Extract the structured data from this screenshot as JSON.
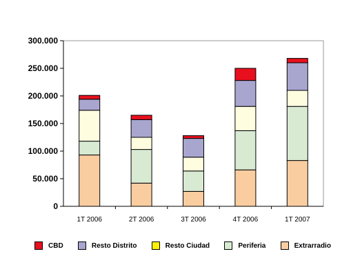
{
  "chart_data": {
    "type": "bar",
    "stacked": true,
    "categories": [
      "1T 2006",
      "2T 2006",
      "3T 2006",
      "4T 2006",
      "1T 2007"
    ],
    "series": [
      {
        "name": "Extrarradio",
        "color": "#FACDA0",
        "values": [
          93000,
          42000,
          27000,
          66000,
          83000
        ]
      },
      {
        "name": "Periferia",
        "color": "#D9EAD3",
        "values": [
          25000,
          61000,
          37000,
          71000,
          98000
        ]
      },
      {
        "name": "Resto Ciudad",
        "color": "#FFFDE0",
        "values": [
          56000,
          22000,
          25000,
          44000,
          29000
        ]
      },
      {
        "name": "Resto Distrito",
        "color": "#A8A5CF",
        "values": [
          20000,
          32000,
          34000,
          47000,
          50000
        ]
      },
      {
        "name": "CBD",
        "color": "#E8101E",
        "values": [
          7000,
          8000,
          5000,
          22000,
          8000
        ]
      }
    ],
    "legend_order": [
      "CBD",
      "Resto Distrito",
      "Resto Ciudad",
      "Periferia",
      "Extrarradio"
    ],
    "legend_swatch_colors": {
      "CBD": "#E8101E",
      "Resto Distrito": "#A8A5CF",
      "Resto Ciudad": "#FFF200",
      "Periferia": "#D9EAD3",
      "Extrarradio": "#FACDA0"
    },
    "yticks": [
      "0",
      "50.000",
      "100.000",
      "150.000",
      "200.000",
      "250.000",
      "300.000"
    ],
    "ylim": [
      0,
      300000
    ],
    "grid": false,
    "legend_position": "bottom",
    "title": "",
    "xlabel": "",
    "ylabel": ""
  }
}
